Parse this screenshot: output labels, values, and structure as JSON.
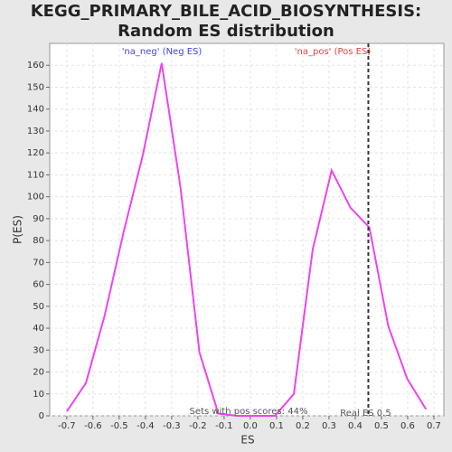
{
  "chart_data": {
    "type": "line",
    "title": "KEGG_PRIMARY_BILE_ACID_BIOSYNTHESIS: Random ES distribution",
    "xlabel": "ES",
    "ylabel": "P(ES)",
    "x": [
      -0.7,
      -0.627,
      -0.555,
      -0.483,
      -0.41,
      -0.338,
      -0.266,
      -0.194,
      -0.122,
      -0.05,
      0.022,
      0.094,
      0.166,
      0.238,
      0.31,
      0.382,
      0.454,
      0.526,
      0.598,
      0.67
    ],
    "series": [
      {
        "name": "P(ES)",
        "color": "#ee44ee",
        "values": [
          2,
          15,
          46,
          84,
          119,
          161,
          104,
          29,
          1,
          0,
          0,
          0,
          10,
          76,
          112,
          95,
          86,
          41,
          17,
          3
        ]
      }
    ],
    "xlim": [
      -0.765,
      0.738
    ],
    "ylim": [
      0,
      170
    ],
    "xticks": [
      -0.7,
      -0.6,
      -0.5,
      -0.4,
      -0.3,
      -0.2,
      -0.1,
      {
        "value": 0,
        "label": "0.0"
      },
      0.1,
      0.2,
      0.3,
      0.4,
      0.5,
      0.6,
      0.7
    ],
    "yticks": [
      0,
      10,
      20,
      30,
      40,
      50,
      60,
      70,
      80,
      90,
      100,
      110,
      120,
      130,
      140,
      150,
      160
    ],
    "grid": true,
    "neg_label": "'na_neg' (Neg ES)",
    "pos_label": "'na_pos' (Pos ES)",
    "pos_scores": "Sets with pos scores: 44%",
    "real_es": {
      "value": 0.45,
      "label": "Real ES 0.5"
    }
  }
}
